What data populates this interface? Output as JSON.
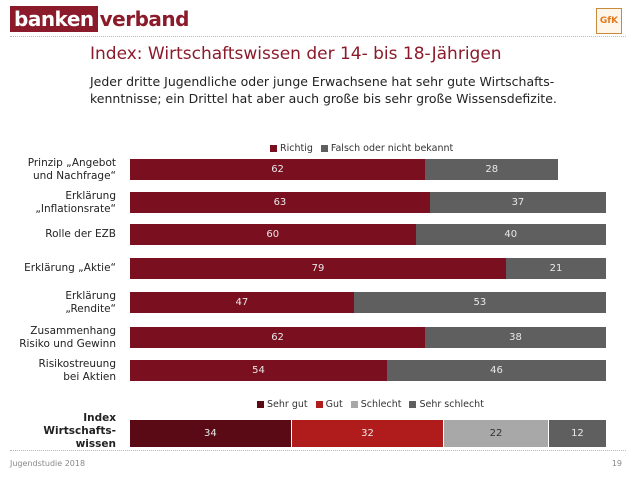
{
  "header": {
    "logo_part1": "banken",
    "logo_part2": "verband",
    "partner_logo": "GfK"
  },
  "title": "Index: Wirtschaftswissen der 14- bis 18-Jährigen",
  "subtitle_lines": [
    "Jeder dritte Jugendliche oder junge Erwachsene hat sehr gute Wirtschafts-",
    "kenntnisse; ein Drittel hat aber auch große bis sehr große Wissensdefizite."
  ],
  "colors": {
    "richtig": "#7a0f1f",
    "falsch": "#5f5f5f",
    "sehr_gut": "#5a0a14",
    "gut": "#b01c1c",
    "schlecht": "#a8a8a8",
    "sehr_schlecht": "#5f5f5f"
  },
  "chart_data": [
    {
      "type": "bar",
      "orientation": "horizontal",
      "stacked": true,
      "categories": [
        "Prinzip „Angebot\nund Nachfrage“",
        "Erklärung\n„Inflationsrate“",
        "Rolle der EZB",
        "Erklärung „Aktie“",
        "Erklärung\n„Rendite“",
        "Zusammenhang\nRisiko und Gewinn",
        "Risikostreuung\nbei Aktien"
      ],
      "series": [
        {
          "name": "Richtig",
          "values": [
            62,
            63,
            60,
            79,
            47,
            62,
            54
          ]
        },
        {
          "name": "Falsch oder nicht bekannt",
          "values": [
            28,
            37,
            40,
            21,
            53,
            38,
            46
          ]
        }
      ],
      "xlim": [
        0,
        100
      ],
      "legend": "top-center"
    },
    {
      "type": "bar",
      "orientation": "horizontal",
      "stacked": true,
      "categories": [
        "Index\nWirtschafts-\nwissen"
      ],
      "series": [
        {
          "name": "Sehr gut",
          "values": [
            34
          ]
        },
        {
          "name": "Gut",
          "values": [
            32
          ]
        },
        {
          "name": "Schlecht",
          "values": [
            22
          ]
        },
        {
          "name": "Sehr schlecht",
          "values": [
            12
          ]
        }
      ],
      "xlim": [
        0,
        100
      ],
      "legend": "top-center"
    }
  ],
  "footer": {
    "source": "Jugendstudie 2018",
    "page": "19"
  }
}
